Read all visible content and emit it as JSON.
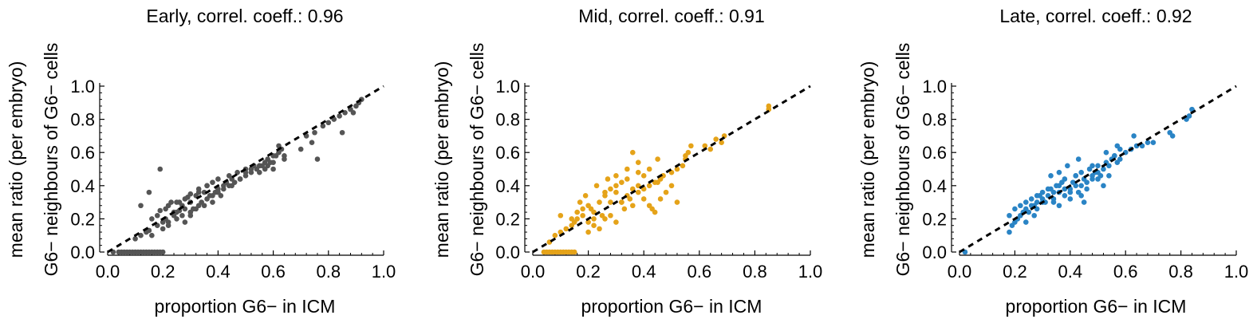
{
  "chart_data": [
    {
      "type": "scatter",
      "title": "Early, correl. coeff.: 0.96",
      "xlabel": "proportion G6− in ICM",
      "ylabel_line1": "mean ratio (per embryo)",
      "ylabel_line2": "G6− neighbours of G6− cells",
      "xlim": [
        0,
        1
      ],
      "ylim": [
        0,
        1
      ],
      "xticks": [
        "0.0",
        "0.2",
        "0.4",
        "0.6",
        "0.8",
        "1.0"
      ],
      "yticks": [
        "0.0",
        "0.2",
        "0.4",
        "0.6",
        "0.8",
        "1.0"
      ],
      "color": "#555555",
      "reference_line": {
        "style": "dashed",
        "from": [
          0,
          0
        ],
        "to": [
          1,
          1
        ]
      },
      "x": [
        0.02,
        0.04,
        0.05,
        0.06,
        0.07,
        0.08,
        0.09,
        0.1,
        0.11,
        0.12,
        0.13,
        0.14,
        0.15,
        0.16,
        0.17,
        0.18,
        0.19,
        0.2,
        0.1,
        0.12,
        0.14,
        0.15,
        0.16,
        0.18,
        0.2,
        0.21,
        0.22,
        0.24,
        0.25,
        0.26,
        0.28,
        0.3,
        0.16,
        0.18,
        0.19,
        0.21,
        0.22,
        0.23,
        0.24,
        0.26,
        0.27,
        0.29,
        0.3,
        0.32,
        0.33,
        0.35,
        0.36,
        0.38,
        0.2,
        0.22,
        0.25,
        0.27,
        0.28,
        0.3,
        0.31,
        0.33,
        0.34,
        0.36,
        0.37,
        0.39,
        0.4,
        0.42,
        0.43,
        0.45,
        0.3,
        0.32,
        0.35,
        0.38,
        0.4,
        0.42,
        0.44,
        0.46,
        0.48,
        0.5,
        0.52,
        0.54,
        0.55,
        0.57,
        0.58,
        0.6,
        0.45,
        0.48,
        0.5,
        0.52,
        0.55,
        0.57,
        0.6,
        0.62,
        0.64,
        0.62,
        0.63,
        0.55,
        0.58,
        0.6,
        0.64,
        0.7,
        0.72,
        0.74,
        0.75,
        0.78,
        0.8,
        0.82,
        0.84,
        0.86,
        0.88,
        0.9,
        0.91,
        0.92,
        0.76,
        0.85,
        0.89,
        0.19,
        0.15,
        0.12,
        0.25,
        0.28,
        0.33,
        0.36,
        0.4,
        0.44,
        0.47,
        0.5,
        0.53,
        0.56,
        0.59,
        0.61,
        0.38,
        0.41
      ],
      "y": [
        0.0,
        0.0,
        0.0,
        0.0,
        0.0,
        0.0,
        0.0,
        0.0,
        0.0,
        0.0,
        0.0,
        0.0,
        0.0,
        0.0,
        0.0,
        0.0,
        0.0,
        0.0,
        0.08,
        0.1,
        0.12,
        0.13,
        0.1,
        0.16,
        0.18,
        0.2,
        0.18,
        0.22,
        0.24,
        0.25,
        0.26,
        0.3,
        0.2,
        0.22,
        0.25,
        0.26,
        0.28,
        0.3,
        0.24,
        0.3,
        0.28,
        0.33,
        0.35,
        0.34,
        0.38,
        0.36,
        0.4,
        0.42,
        0.14,
        0.16,
        0.2,
        0.22,
        0.18,
        0.24,
        0.26,
        0.28,
        0.3,
        0.32,
        0.34,
        0.36,
        0.38,
        0.4,
        0.42,
        0.44,
        0.22,
        0.26,
        0.28,
        0.34,
        0.36,
        0.38,
        0.4,
        0.42,
        0.44,
        0.46,
        0.48,
        0.5,
        0.52,
        0.54,
        0.56,
        0.58,
        0.4,
        0.44,
        0.48,
        0.5,
        0.52,
        0.5,
        0.54,
        0.6,
        0.58,
        0.64,
        0.62,
        0.48,
        0.52,
        0.5,
        0.56,
        0.62,
        0.7,
        0.66,
        0.72,
        0.76,
        0.78,
        0.8,
        0.82,
        0.84,
        0.86,
        0.88,
        0.9,
        0.92,
        0.56,
        0.72,
        0.84,
        0.5,
        0.36,
        0.28,
        0.3,
        0.32,
        0.36,
        0.4,
        0.44,
        0.46,
        0.48,
        0.5,
        0.52,
        0.52,
        0.54,
        0.58,
        0.3,
        0.34
      ]
    },
    {
      "type": "scatter",
      "title": "Mid, correl. coeff.: 0.91",
      "xlabel": "proportion G6− in ICM",
      "ylabel_line1": "mean ratio (per embryo)",
      "ylabel_line2": "G6− neighbours of G6− cells",
      "xlim": [
        0,
        1
      ],
      "ylim": [
        0,
        1
      ],
      "xticks": [
        "0.0",
        "0.2",
        "0.4",
        "0.6",
        "0.8",
        "1.0"
      ],
      "yticks": [
        "0.0",
        "0.2",
        "0.4",
        "0.6",
        "0.8",
        "1.0"
      ],
      "color": "#E5A319",
      "reference_line": {
        "style": "dashed",
        "from": [
          0,
          0
        ],
        "to": [
          1,
          1
        ]
      },
      "x": [
        0.04,
        0.05,
        0.06,
        0.07,
        0.08,
        0.09,
        0.1,
        0.11,
        0.12,
        0.13,
        0.14,
        0.15,
        0.06,
        0.08,
        0.1,
        0.12,
        0.14,
        0.15,
        0.16,
        0.18,
        0.2,
        0.21,
        0.22,
        0.1,
        0.14,
        0.16,
        0.18,
        0.2,
        0.22,
        0.24,
        0.25,
        0.26,
        0.28,
        0.3,
        0.2,
        0.22,
        0.24,
        0.26,
        0.28,
        0.3,
        0.32,
        0.33,
        0.34,
        0.36,
        0.38,
        0.26,
        0.28,
        0.3,
        0.32,
        0.34,
        0.36,
        0.38,
        0.4,
        0.42,
        0.44,
        0.46,
        0.32,
        0.35,
        0.38,
        0.4,
        0.42,
        0.45,
        0.47,
        0.5,
        0.52,
        0.54,
        0.55,
        0.56,
        0.42,
        0.44,
        0.46,
        0.48,
        0.5,
        0.52,
        0.45,
        0.55,
        0.57,
        0.62,
        0.64,
        0.66,
        0.68,
        0.69,
        0.85,
        0.85,
        0.38,
        0.34,
        0.3,
        0.27,
        0.23,
        0.19,
        0.17,
        0.4,
        0.43,
        0.36
      ],
      "y": [
        0.0,
        0.0,
        0.0,
        0.0,
        0.0,
        0.0,
        0.0,
        0.0,
        0.0,
        0.0,
        0.0,
        0.0,
        0.06,
        0.1,
        0.12,
        0.14,
        0.16,
        0.18,
        0.2,
        0.22,
        0.18,
        0.26,
        0.2,
        0.22,
        0.2,
        0.24,
        0.26,
        0.28,
        0.24,
        0.3,
        0.22,
        0.34,
        0.3,
        0.36,
        0.12,
        0.16,
        0.14,
        0.2,
        0.22,
        0.18,
        0.3,
        0.26,
        0.34,
        0.28,
        0.4,
        0.36,
        0.38,
        0.4,
        0.42,
        0.44,
        0.38,
        0.48,
        0.46,
        0.5,
        0.42,
        0.44,
        0.3,
        0.32,
        0.36,
        0.38,
        0.4,
        0.42,
        0.46,
        0.48,
        0.5,
        0.52,
        0.58,
        0.6,
        0.28,
        0.24,
        0.32,
        0.36,
        0.4,
        0.3,
        0.56,
        0.56,
        0.64,
        0.64,
        0.62,
        0.68,
        0.66,
        0.7,
        0.86,
        0.88,
        0.54,
        0.5,
        0.46,
        0.44,
        0.4,
        0.34,
        0.3,
        0.32,
        0.26,
        0.6
      ]
    },
    {
      "type": "scatter",
      "title": "Late, correl. coeff.: 0.92",
      "xlabel": "proportion G6− in ICM",
      "ylabel_line1": "mean ratio (per embryo)",
      "ylabel_line2": "G6− neighbours of G6− cells",
      "xlim": [
        0,
        1
      ],
      "ylim": [
        0,
        1
      ],
      "xticks": [
        "0.0",
        "0.2",
        "0.4",
        "0.6",
        "0.8",
        "1.0"
      ],
      "yticks": [
        "0.0",
        "0.2",
        "0.4",
        "0.6",
        "0.8",
        "1.0"
      ],
      "color": "#2A84C5",
      "reference_line": {
        "style": "dashed",
        "from": [
          0,
          0
        ],
        "to": [
          1,
          1
        ]
      },
      "x": [
        0.02,
        0.18,
        0.19,
        0.2,
        0.21,
        0.22,
        0.23,
        0.24,
        0.18,
        0.2,
        0.22,
        0.24,
        0.25,
        0.26,
        0.27,
        0.28,
        0.29,
        0.3,
        0.24,
        0.26,
        0.28,
        0.3,
        0.31,
        0.32,
        0.33,
        0.34,
        0.35,
        0.36,
        0.37,
        0.38,
        0.28,
        0.3,
        0.32,
        0.34,
        0.36,
        0.38,
        0.4,
        0.41,
        0.42,
        0.43,
        0.44,
        0.45,
        0.34,
        0.36,
        0.38,
        0.4,
        0.42,
        0.44,
        0.46,
        0.47,
        0.48,
        0.49,
        0.5,
        0.51,
        0.4,
        0.42,
        0.44,
        0.46,
        0.48,
        0.5,
        0.52,
        0.53,
        0.54,
        0.55,
        0.56,
        0.57,
        0.58,
        0.48,
        0.5,
        0.52,
        0.54,
        0.56,
        0.58,
        0.6,
        0.62,
        0.64,
        0.66,
        0.68,
        0.7,
        0.63,
        0.76,
        0.77,
        0.82,
        0.83,
        0.84,
        0.45,
        0.39,
        0.36,
        0.33,
        0.57,
        0.53,
        0.27,
        0.43
      ],
      "y": [
        0.0,
        0.12,
        0.16,
        0.18,
        0.2,
        0.22,
        0.24,
        0.26,
        0.22,
        0.26,
        0.28,
        0.3,
        0.24,
        0.32,
        0.28,
        0.3,
        0.34,
        0.32,
        0.18,
        0.28,
        0.26,
        0.36,
        0.3,
        0.34,
        0.38,
        0.32,
        0.4,
        0.36,
        0.42,
        0.38,
        0.34,
        0.3,
        0.38,
        0.36,
        0.4,
        0.44,
        0.38,
        0.42,
        0.46,
        0.36,
        0.48,
        0.44,
        0.3,
        0.28,
        0.34,
        0.32,
        0.46,
        0.4,
        0.42,
        0.5,
        0.44,
        0.48,
        0.52,
        0.46,
        0.36,
        0.4,
        0.34,
        0.38,
        0.46,
        0.48,
        0.5,
        0.54,
        0.52,
        0.56,
        0.58,
        0.54,
        0.62,
        0.52,
        0.44,
        0.4,
        0.46,
        0.58,
        0.56,
        0.6,
        0.62,
        0.64,
        0.64,
        0.66,
        0.66,
        0.7,
        0.72,
        0.7,
        0.8,
        0.82,
        0.86,
        0.3,
        0.52,
        0.48,
        0.46,
        0.64,
        0.6,
        0.22,
        0.56
      ]
    }
  ]
}
